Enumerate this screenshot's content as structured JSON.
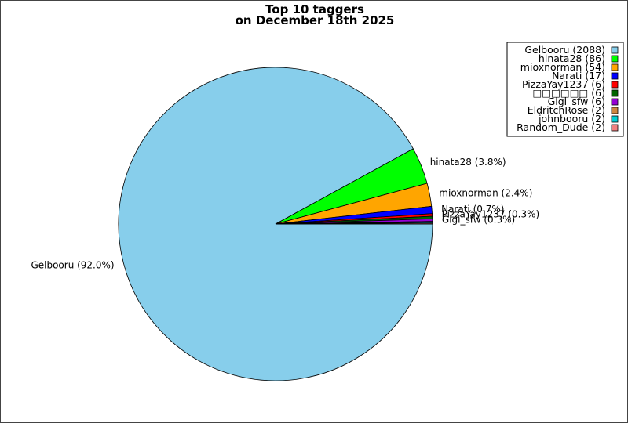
{
  "chart_data": {
    "type": "pie",
    "title_lines": [
      "Top 10 taggers",
      "on December 18th 2025"
    ],
    "legend_position": "top-right",
    "slices": [
      {
        "name": "Gelbooru",
        "value": 2088,
        "legend": "Gelbooru (2088)",
        "label": "Gelbooru (92.0%)",
        "color": "#87CEEB"
      },
      {
        "name": "hinata28",
        "value": 86,
        "legend": "hinata28 (86)",
        "label": "hinata28 (3.8%)",
        "color": "#00FF00"
      },
      {
        "name": "mioxnorman",
        "value": 54,
        "legend": "mioxnorman (54)",
        "label": "mioxnorman (2.4%)",
        "color": "#FFA500"
      },
      {
        "name": "Narati",
        "value": 17,
        "legend": "Narati (17)",
        "label": "Narati (0.7%)",
        "color": "#0000FF"
      },
      {
        "name": "PizzaYay1237",
        "value": 6,
        "legend": "PizzaYay1237 (6)",
        "label": "PizzaYay1237 (0.3%)",
        "color": "#FF0000"
      },
      {
        "name": "□□□□□□",
        "value": 6,
        "legend": "□□□□□□ (6)",
        "label": "",
        "color": "#006400"
      },
      {
        "name": "Gigi_sfw",
        "value": 6,
        "legend": "Gigi_sfw (6)",
        "label": "Gigi_sfw (0.3%)",
        "color": "#9400D3"
      },
      {
        "name": "EldritchRose",
        "value": 2,
        "legend": "EldritchRose (2)",
        "label": "",
        "color": "#CD853F"
      },
      {
        "name": "johnbooru",
        "value": 2,
        "legend": "johnbooru (2)",
        "label": "",
        "color": "#00CED1"
      },
      {
        "name": "Random_Dude",
        "value": 2,
        "legend": "Random_Dude (2)",
        "label": "",
        "color": "#F08080"
      }
    ]
  }
}
